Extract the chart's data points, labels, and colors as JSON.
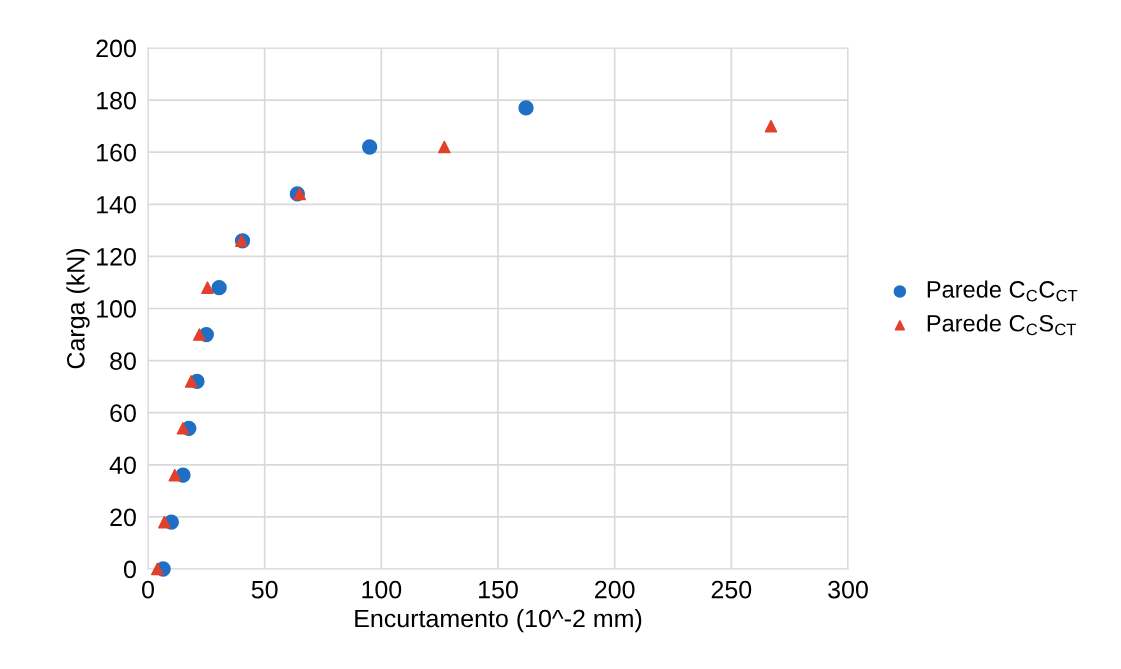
{
  "chart_data": {
    "type": "scatter",
    "xlabel": "Encurtamento (10^-2 mm)",
    "ylabel": "Carga (kN)",
    "xlim": [
      0,
      300
    ],
    "xticks": [
      0,
      50,
      100,
      150,
      200,
      250,
      300
    ],
    "ylim": [
      0,
      200
    ],
    "yticks": [
      0,
      20,
      40,
      60,
      80,
      100,
      120,
      140,
      160,
      180,
      200
    ],
    "grid": true,
    "legend": "right",
    "series": [
      {
        "name": "Parede C$_{C}$C$_{CT}$",
        "color": "#1f6fc5",
        "marker": "circle",
        "x": [
          6.5,
          10,
          15,
          17.5,
          21,
          25,
          30.5,
          40.5,
          64,
          95,
          162
        ],
        "values": [
          0,
          18,
          36,
          54,
          72,
          90,
          108,
          126,
          144,
          162,
          177
        ]
      },
      {
        "name": "Parede C$_{C}$S$_{CT}$",
        "color": "#e2402a",
        "marker": "triangle",
        "x": [
          4,
          7,
          11.5,
          15,
          18.5,
          22,
          25.5,
          40,
          65,
          127,
          267
        ],
        "values": [
          0,
          18,
          36,
          54,
          72,
          90,
          108,
          126,
          144,
          162,
          170
        ]
      }
    ]
  }
}
